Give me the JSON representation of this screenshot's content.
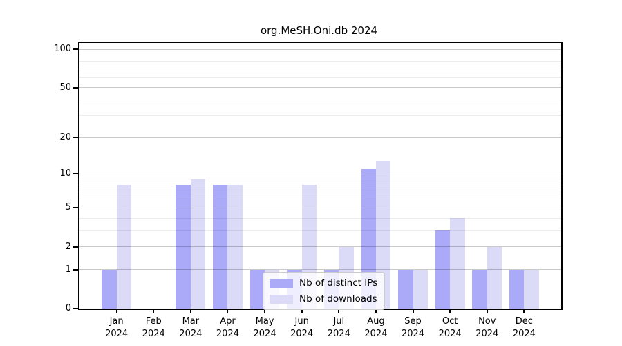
{
  "title": "org.MeSH.Oni.db 2024",
  "chart_data": {
    "type": "bar",
    "title": "org.MeSH.Oni.db 2024",
    "scale": "log1p",
    "categories": [
      "Jan",
      "Feb",
      "Mar",
      "Apr",
      "May",
      "Jun",
      "Jul",
      "Aug",
      "Sep",
      "Oct",
      "Nov",
      "Dec"
    ],
    "xtick_year": "2024",
    "series": [
      {
        "name": "Nb of distinct IPs",
        "color": "#aaaaf8",
        "values": [
          1,
          0,
          8,
          8,
          1,
          1,
          1,
          11,
          1,
          3,
          1,
          1
        ]
      },
      {
        "name": "Nb of downloads",
        "color": "#dbdbf8",
        "values": [
          8,
          0,
          9,
          8,
          1,
          8,
          2,
          13,
          1,
          4,
          2,
          1
        ]
      }
    ],
    "y_ticks": [
      0,
      1,
      2,
      5,
      10,
      20,
      50,
      100
    ],
    "y_minor_ticks": [
      3,
      4,
      6,
      7,
      8,
      9,
      30,
      40,
      60,
      70,
      80,
      90
    ],
    "ylim": [
      0,
      100
    ],
    "xlabel": "",
    "ylabel": "",
    "grid": true,
    "grid_above_bars": true,
    "legend_position": "lower center"
  },
  "colors": {
    "axis": "#000000",
    "major_grid": "#cccccc",
    "minor_grid": "#ececec",
    "background": "#ffffff"
  }
}
